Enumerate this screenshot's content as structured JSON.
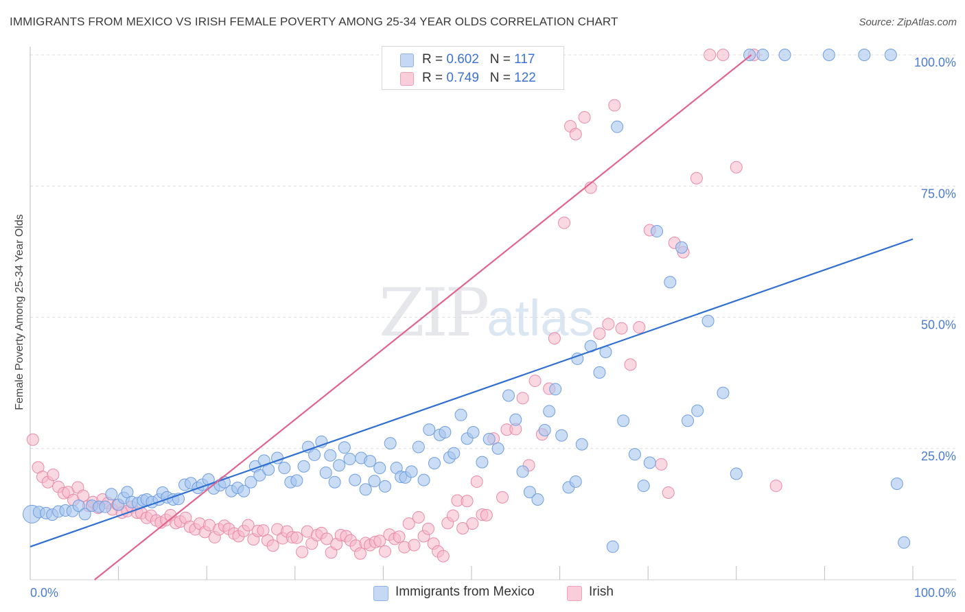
{
  "header": {
    "title": "IMMIGRANTS FROM MEXICO VS IRISH FEMALE POVERTY AMONG 25-34 YEAR OLDS CORRELATION CHART",
    "source": "Source: ZipAtlas.com"
  },
  "watermark": {
    "zip": "ZIP",
    "atlas": "atlas"
  },
  "legend": {
    "rows": [
      {
        "r_label": "R =",
        "r_value": "0.602",
        "n_label": "N =",
        "n_value": "117",
        "color": "#a9c6ef"
      },
      {
        "r_label": "R =",
        "r_value": "0.749",
        "n_label": "N =",
        "n_value": "122",
        "color": "#f5b8cb"
      }
    ]
  },
  "bottom_legend": [
    {
      "label": "Immigrants from Mexico",
      "color": "#a9c6ef"
    },
    {
      "label": "Irish",
      "color": "#f5b8cb"
    }
  ],
  "colors": {
    "blue_fill": "#a9c6ef",
    "blue_stroke": "#6e9ee0",
    "blue_line": "#2f6fd1",
    "pink_fill": "#f5b8cb",
    "pink_stroke": "#e98aa8",
    "pink_line": "#e0648e",
    "tick_label": "#4a7bd0",
    "grid": "#dcdcdc"
  },
  "chart_data": {
    "type": "scatter",
    "title": "IMMIGRANTS FROM MEXICO VS IRISH FEMALE POVERTY AMONG 25-34 YEAR OLDS CORRELATION CHART",
    "xlabel": "",
    "ylabel": "Female Poverty Among 25-34 Year Olds",
    "xlim": [
      0,
      100
    ],
    "ylim": [
      0,
      100
    ],
    "x_tick_labels": [
      "0.0%",
      "100.0%"
    ],
    "y_tick_labels": [
      "25.0%",
      "50.0%",
      "75.0%",
      "100.0%"
    ],
    "y_ticks": [
      25,
      50,
      75,
      100
    ],
    "grid": "horizontal dashed",
    "legend_position": "top-center",
    "series": [
      {
        "name": "Immigrants from Mexico",
        "R": 0.602,
        "N": 117,
        "trendline": {
          "x": [
            0,
            100
          ],
          "y": [
            6.3,
            64.9
          ]
        },
        "points": [
          [
            0.2,
            12.5
          ],
          [
            1.0,
            12.9
          ],
          [
            1.8,
            12.7
          ],
          [
            2.5,
            12.4
          ],
          [
            3.2,
            13.0
          ],
          [
            4.0,
            13.2
          ],
          [
            4.8,
            13.1
          ],
          [
            5.5,
            14.1
          ],
          [
            6.2,
            12.5
          ],
          [
            7.0,
            14.1
          ],
          [
            7.8,
            13.9
          ],
          [
            8.5,
            13.9
          ],
          [
            9.2,
            16.3
          ],
          [
            10.0,
            14.3
          ],
          [
            10.6,
            15.6
          ],
          [
            11.0,
            16.7
          ],
          [
            11.5,
            14.8
          ],
          [
            12.2,
            14.6
          ],
          [
            12.8,
            15.1
          ],
          [
            13.2,
            15.3
          ],
          [
            13.8,
            14.8
          ],
          [
            14.6,
            15.3
          ],
          [
            15.0,
            16.6
          ],
          [
            15.5,
            15.7
          ],
          [
            16.2,
            15.3
          ],
          [
            16.8,
            15.4
          ],
          [
            17.5,
            18.1
          ],
          [
            18.2,
            18.4
          ],
          [
            19.0,
            17.5
          ],
          [
            19.5,
            18.1
          ],
          [
            20.2,
            19.1
          ],
          [
            20.8,
            17.4
          ],
          [
            21.5,
            18.0
          ],
          [
            22.0,
            18.6
          ],
          [
            22.8,
            16.9
          ],
          [
            23.5,
            17.5
          ],
          [
            24.2,
            16.9
          ],
          [
            25.0,
            18.6
          ],
          [
            25.5,
            21.6
          ],
          [
            26.0,
            19.9
          ],
          [
            26.5,
            22.7
          ],
          [
            27.0,
            21.0
          ],
          [
            28.0,
            23.2
          ],
          [
            28.8,
            21.3
          ],
          [
            29.5,
            18.6
          ],
          [
            30.2,
            18.9
          ],
          [
            31.0,
            21.6
          ],
          [
            31.5,
            25.3
          ],
          [
            32.2,
            23.8
          ],
          [
            33.0,
            26.3
          ],
          [
            33.5,
            20.4
          ],
          [
            34.0,
            23.7
          ],
          [
            34.5,
            18.6
          ],
          [
            35.0,
            21.8
          ],
          [
            35.6,
            25.2
          ],
          [
            36.2,
            23.0
          ],
          [
            36.8,
            19.0
          ],
          [
            37.5,
            23.2
          ],
          [
            38.0,
            17.2
          ],
          [
            38.5,
            22.6
          ],
          [
            39.0,
            18.8
          ],
          [
            39.6,
            21.3
          ],
          [
            40.2,
            17.8
          ],
          [
            40.8,
            26.0
          ],
          [
            41.5,
            21.3
          ],
          [
            42.0,
            19.6
          ],
          [
            42.5,
            19.5
          ],
          [
            43.2,
            20.6
          ],
          [
            44.0,
            25.3
          ],
          [
            44.6,
            19.0
          ],
          [
            45.2,
            28.6
          ],
          [
            45.8,
            22.2
          ],
          [
            46.4,
            27.6
          ],
          [
            47.0,
            28.1
          ],
          [
            47.5,
            23.3
          ],
          [
            48.0,
            24.1
          ],
          [
            48.8,
            31.4
          ],
          [
            49.5,
            26.9
          ],
          [
            50.2,
            28.1
          ],
          [
            51.2,
            22.4
          ],
          [
            52.0,
            26.8
          ],
          [
            53.0,
            25.0
          ],
          [
            54.2,
            35.1
          ],
          [
            55.0,
            30.5
          ],
          [
            55.8,
            20.6
          ],
          [
            56.6,
            16.7
          ],
          [
            57.5,
            15.3
          ],
          [
            58.3,
            28.5
          ],
          [
            58.8,
            32.1
          ],
          [
            59.5,
            36.3
          ],
          [
            60.2,
            27.5
          ],
          [
            61.0,
            17.6
          ],
          [
            61.8,
            18.7
          ],
          [
            62.5,
            25.8
          ],
          [
            62.0,
            42.1
          ],
          [
            63.5,
            44.5
          ],
          [
            64.5,
            39.5
          ],
          [
            65.2,
            43.4
          ],
          [
            66.0,
            6.3
          ],
          [
            66.5,
            86.3
          ],
          [
            67.2,
            30.3
          ],
          [
            68.5,
            23.9
          ],
          [
            69.5,
            17.9
          ],
          [
            70.2,
            22.3
          ],
          [
            71.0,
            66.4
          ],
          [
            72.5,
            56.7
          ],
          [
            73.8,
            63.3
          ],
          [
            74.5,
            30.3
          ],
          [
            75.6,
            32.2
          ],
          [
            76.8,
            49.3
          ],
          [
            78.5,
            35.6
          ],
          [
            80.0,
            20.2
          ],
          [
            81.5,
            100
          ],
          [
            83.0,
            100
          ],
          [
            85.5,
            100
          ],
          [
            90.5,
            100
          ],
          [
            94.5,
            100
          ],
          [
            97.5,
            100
          ],
          [
            98.2,
            18.3
          ],
          [
            99.0,
            7.1
          ]
        ]
      },
      {
        "name": "Irish",
        "R": 0.749,
        "N": 122,
        "trendline": {
          "x": [
            0,
            100
          ],
          "y": [
            -9.8,
            124.6
          ]
        },
        "points": [
          [
            0.3,
            26.7
          ],
          [
            0.9,
            21.4
          ],
          [
            1.4,
            19.6
          ],
          [
            2.0,
            18.6
          ],
          [
            2.6,
            20.0
          ],
          [
            3.2,
            17.7
          ],
          [
            3.8,
            16.5
          ],
          [
            4.3,
            16.7
          ],
          [
            4.9,
            15.2
          ],
          [
            5.4,
            17.6
          ],
          [
            6.0,
            16.0
          ],
          [
            6.6,
            14.1
          ],
          [
            7.1,
            14.8
          ],
          [
            7.7,
            13.7
          ],
          [
            8.2,
            15.3
          ],
          [
            8.8,
            14.6
          ],
          [
            9.3,
            13.4
          ],
          [
            9.9,
            14.3
          ],
          [
            10.4,
            12.8
          ],
          [
            11.0,
            13.1
          ],
          [
            11.5,
            13.9
          ],
          [
            12.1,
            12.8
          ],
          [
            12.6,
            12.7
          ],
          [
            13.2,
            11.8
          ],
          [
            13.7,
            12.2
          ],
          [
            14.3,
            11.3
          ],
          [
            14.8,
            10.9
          ],
          [
            15.4,
            11.4
          ],
          [
            15.9,
            12.3
          ],
          [
            16.5,
            10.8
          ],
          [
            17.0,
            11.1
          ],
          [
            17.6,
            11.8
          ],
          [
            18.1,
            10.1
          ],
          [
            18.7,
            9.6
          ],
          [
            19.2,
            10.7
          ],
          [
            19.8,
            9.1
          ],
          [
            20.3,
            10.4
          ],
          [
            20.9,
            8.1
          ],
          [
            21.4,
            9.6
          ],
          [
            22.0,
            10.3
          ],
          [
            22.5,
            9.7
          ],
          [
            23.1,
            8.8
          ],
          [
            23.6,
            8.3
          ],
          [
            24.2,
            9.3
          ],
          [
            24.7,
            10.4
          ],
          [
            25.3,
            7.7
          ],
          [
            25.8,
            9.3
          ],
          [
            26.4,
            9.4
          ],
          [
            26.9,
            7.5
          ],
          [
            27.5,
            6.5
          ],
          [
            28.0,
            9.6
          ],
          [
            28.6,
            7.9
          ],
          [
            29.1,
            9.2
          ],
          [
            29.7,
            8.1
          ],
          [
            30.2,
            8.0
          ],
          [
            30.8,
            5.3
          ],
          [
            31.4,
            9.2
          ],
          [
            31.9,
            6.9
          ],
          [
            32.5,
            8.5
          ],
          [
            33.0,
            8.9
          ],
          [
            33.6,
            7.8
          ],
          [
            34.1,
            5.2
          ],
          [
            34.7,
            6.8
          ],
          [
            35.2,
            8.5
          ],
          [
            35.8,
            8.3
          ],
          [
            36.3,
            7.5
          ],
          [
            36.9,
            6.5
          ],
          [
            37.4,
            5.0
          ],
          [
            38.0,
            7.0
          ],
          [
            38.5,
            6.6
          ],
          [
            39.1,
            7.2
          ],
          [
            39.6,
            7.4
          ],
          [
            40.2,
            5.4
          ],
          [
            40.7,
            8.6
          ],
          [
            41.3,
            7.8
          ],
          [
            41.8,
            8.2
          ],
          [
            42.4,
            6.2
          ],
          [
            42.9,
            10.7
          ],
          [
            43.5,
            6.6
          ],
          [
            44.0,
            11.9
          ],
          [
            44.6,
            8.3
          ],
          [
            45.1,
            9.7
          ],
          [
            45.7,
            6.9
          ],
          [
            46.2,
            5.4
          ],
          [
            46.8,
            4.5
          ],
          [
            47.3,
            10.8
          ],
          [
            47.9,
            12.2
          ],
          [
            48.4,
            15.1
          ],
          [
            49.0,
            9.8
          ],
          [
            49.5,
            15.0
          ],
          [
            50.1,
            10.7
          ],
          [
            50.6,
            18.7
          ],
          [
            51.2,
            12.4
          ],
          [
            51.7,
            12.3
          ],
          [
            52.5,
            26.9
          ],
          [
            53.5,
            15.7
          ],
          [
            54.0,
            28.6
          ],
          [
            55.0,
            28.7
          ],
          [
            55.8,
            34.6
          ],
          [
            56.5,
            21.8
          ],
          [
            57.2,
            37.9
          ],
          [
            58.0,
            27.7
          ],
          [
            58.8,
            36.4
          ],
          [
            59.4,
            46.0
          ],
          [
            60.5,
            68.0
          ],
          [
            61.2,
            86.4
          ],
          [
            61.8,
            84.9
          ],
          [
            62.8,
            88.1
          ],
          [
            63.5,
            74.7
          ],
          [
            64.5,
            46.9
          ],
          [
            65.5,
            48.7
          ],
          [
            66.2,
            90.4
          ],
          [
            67.0,
            47.9
          ],
          [
            68.0,
            41.0
          ],
          [
            69.0,
            48.1
          ],
          [
            70.2,
            66.6
          ],
          [
            71.5,
            22.0
          ],
          [
            72.3,
            16.6
          ],
          [
            73.0,
            64.2
          ],
          [
            74.0,
            62.4
          ],
          [
            75.5,
            76.5
          ],
          [
            77.0,
            100
          ],
          [
            78.5,
            100
          ],
          [
            80.0,
            78.6
          ],
          [
            82.0,
            100
          ],
          [
            84.5,
            17.9
          ]
        ]
      }
    ]
  }
}
